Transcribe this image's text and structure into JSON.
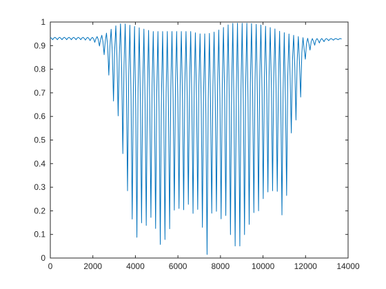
{
  "chart_data": {
    "type": "line",
    "title": "",
    "xlabel": "",
    "ylabel": "",
    "xlim": [
      0,
      14000
    ],
    "ylim": [
      0,
      1
    ],
    "x_ticks": [
      0,
      2000,
      4000,
      6000,
      8000,
      10000,
      12000,
      14000
    ],
    "x_tick_labels": [
      "0",
      "2000",
      "4000",
      "6000",
      "8000",
      "10000",
      "12000",
      "14000"
    ],
    "y_ticks": [
      0,
      0.1,
      0.2,
      0.3,
      0.4,
      0.5,
      0.6,
      0.7,
      0.8,
      0.9,
      1
    ],
    "y_tick_labels": [
      "0",
      "0.1",
      "0.2",
      "0.3",
      "0.4",
      "0.5",
      "0.6",
      "0.7",
      "0.8",
      "0.9",
      "1"
    ],
    "grid": false,
    "legend": "none",
    "colors": {
      "series": "#0072BD",
      "axis": "#262626",
      "background": "#ffffff"
    },
    "series": [
      {
        "x": [
          0,
          500,
          1000,
          1500,
          2000,
          2300,
          2600,
          2800,
          3000,
          3200,
          3400,
          3600,
          3800,
          4000,
          4200,
          4400,
          4600,
          4800,
          5000,
          5200,
          5400,
          5600,
          5800,
          6000,
          6200,
          6400,
          6600,
          6800,
          7000,
          7200,
          7400,
          7600,
          7800,
          8000,
          8200,
          8400,
          8600,
          8800,
          9000,
          9200,
          9400,
          9600,
          9800,
          10000,
          10200,
          10400,
          10600,
          10800,
          11000,
          11200,
          11400,
          11600,
          11800,
          12000,
          12200,
          12400,
          12600,
          13000,
          13500,
          13700
        ],
        "upper": [
          0.935,
          0.935,
          0.935,
          0.935,
          0.935,
          0.94,
          0.95,
          0.965,
          0.98,
          0.99,
          0.995,
          0.99,
          0.985,
          0.98,
          0.975,
          0.97,
          0.965,
          0.96,
          0.96,
          0.96,
          0.96,
          0.96,
          0.96,
          0.96,
          0.96,
          0.96,
          0.96,
          0.955,
          0.95,
          0.95,
          0.95,
          0.955,
          0.96,
          0.97,
          0.98,
          0.99,
          0.995,
          0.995,
          0.995,
          0.995,
          0.995,
          0.99,
          0.99,
          0.985,
          0.98,
          0.975,
          0.97,
          0.96,
          0.955,
          0.95,
          0.945,
          0.94,
          0.935,
          0.932,
          0.93,
          0.93,
          0.93,
          0.93,
          0.93,
          0.93
        ],
        "lower": [
          0.925,
          0.925,
          0.925,
          0.925,
          0.92,
          0.9,
          0.85,
          0.75,
          0.65,
          0.6,
          0.45,
          0.3,
          0.2,
          0.06,
          0.14,
          0.16,
          0.12,
          0.2,
          0.1,
          0.05,
          0.08,
          0.12,
          0.2,
          0.22,
          0.18,
          0.25,
          0.2,
          0.18,
          0.22,
          0.1,
          0.0,
          0.2,
          0.2,
          0.16,
          0.2,
          0.12,
          0.06,
          0.04,
          0.06,
          0.12,
          0.15,
          0.2,
          0.2,
          0.25,
          0.28,
          0.28,
          0.3,
          0.25,
          0.1,
          0.4,
          0.6,
          0.58,
          0.7,
          0.85,
          0.88,
          0.9,
          0.91,
          0.92,
          0.925,
          0.925
        ]
      }
    ]
  }
}
